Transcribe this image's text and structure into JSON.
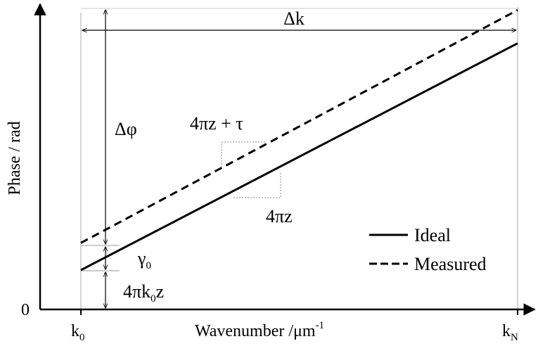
{
  "chart_data": {
    "type": "line",
    "ylabel": "Phase / rad",
    "xlabel": {
      "text": "Wavenumber /μm",
      "superscript": "-1"
    },
    "y_origin_label": "0",
    "x_tick_labels": [
      {
        "base": "k",
        "subscript": "0"
      },
      {
        "base": "k",
        "subscript": "N"
      }
    ],
    "x_range_data": [
      0,
      1
    ],
    "y_range_data": [
      0,
      1
    ],
    "series": [
      {
        "name": "Ideal",
        "style": "solid",
        "x": [
          0.0,
          1.0
        ],
        "y": [
          0.13,
          0.88
        ]
      },
      {
        "name": "Measured",
        "style": "dashed",
        "x": [
          0.0,
          1.0
        ],
        "y": [
          0.22,
          0.99
        ]
      }
    ],
    "legend": {
      "placement": "bottom-right",
      "entries": [
        "Ideal",
        "Measured"
      ]
    },
    "annotations": {
      "delta_k": "Δk",
      "delta_phi": "Δφ",
      "slope_measured": "4πz + τ",
      "slope_ideal": "4πz",
      "gamma0": {
        "base": "γ",
        "subscript": "0"
      },
      "intercept": {
        "prefix": "4πk",
        "subscript": "0",
        "suffix": "z"
      }
    }
  },
  "colors": {
    "line": "#000000",
    "guide": "#999999"
  }
}
